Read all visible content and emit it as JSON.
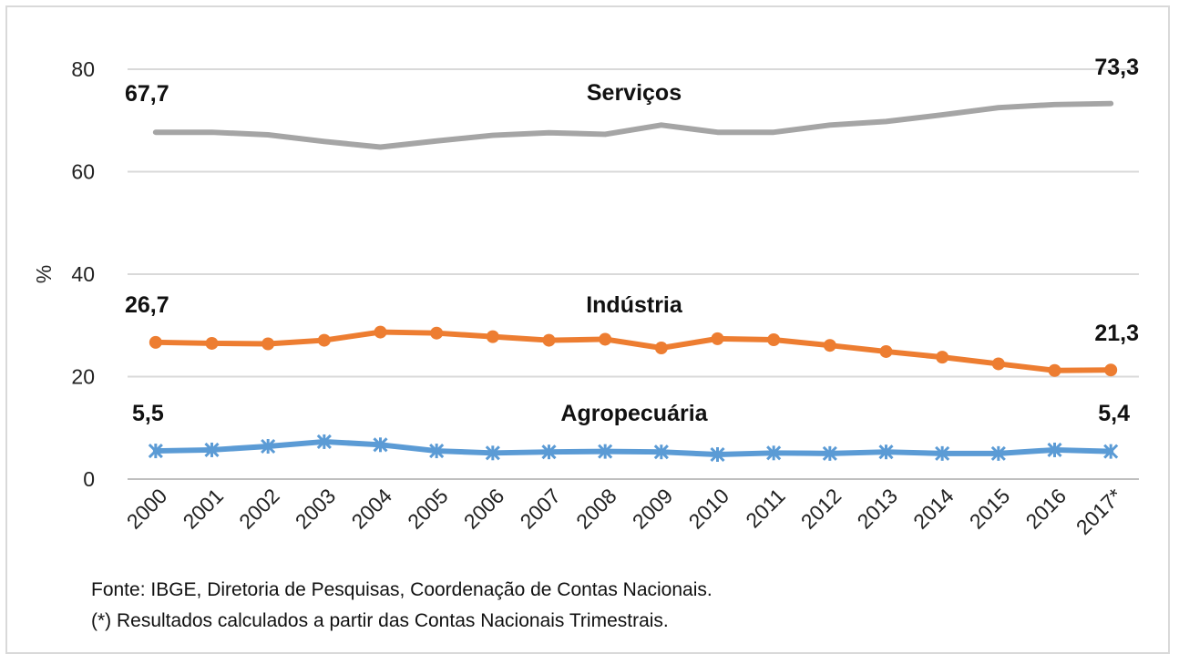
{
  "chart_data": {
    "type": "line",
    "ylabel": "%",
    "ylim": [
      0,
      80
    ],
    "yticks": [
      "0",
      "20",
      "40",
      "60",
      "80"
    ],
    "grid": true,
    "legend": "none",
    "categories": [
      "2000",
      "2001",
      "2002",
      "2003",
      "2004",
      "2005",
      "2006",
      "2007",
      "2008",
      "2009",
      "2010",
      "2011",
      "2012",
      "2013",
      "2014",
      "2015",
      "2016",
      "2017*"
    ],
    "series": [
      {
        "name": "Serviços",
        "color": "#a5a5a5",
        "marker": "none",
        "values": [
          67.7,
          67.7,
          67.2,
          65.9,
          64.8,
          66.0,
          67.1,
          67.6,
          67.3,
          69.1,
          67.7,
          67.7,
          69.1,
          69.8,
          71.1,
          72.5,
          73.1,
          73.3
        ],
        "first_label": "67,7",
        "last_label": "73,3"
      },
      {
        "name": "Indústria",
        "color": "#ed7d31",
        "marker": "circle",
        "values": [
          26.7,
          26.5,
          26.4,
          27.1,
          28.7,
          28.5,
          27.8,
          27.1,
          27.3,
          25.6,
          27.4,
          27.2,
          26.1,
          24.9,
          23.8,
          22.5,
          21.2,
          21.3
        ],
        "first_label": "26,7",
        "last_label": "21,3"
      },
      {
        "name": "Agropecuária",
        "color": "#5b9bd5",
        "marker": "star",
        "values": [
          5.5,
          5.7,
          6.4,
          7.3,
          6.7,
          5.5,
          5.1,
          5.3,
          5.4,
          5.3,
          4.8,
          5.1,
          5.0,
          5.3,
          5.0,
          5.0,
          5.7,
          5.4
        ],
        "first_label": "5,5",
        "last_label": "5,4"
      }
    ]
  },
  "notes": {
    "source": "Fonte: IBGE, Diretoria de Pesquisas, Coordenação de Contas Nacionais.",
    "footnote": "(*) Resultados calculados a partir das Contas Nacionais Trimestrais."
  }
}
